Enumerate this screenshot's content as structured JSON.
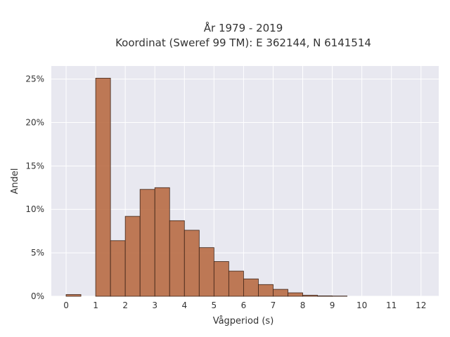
{
  "chart_data": {
    "type": "bar",
    "title_line1": "År 1979 - 2019",
    "title_line2": "Koordinat (Sweref 99 TM): E 362144, N 6141514",
    "xlabel": "Vågperiod (s)",
    "ylabel": "Andel",
    "xlim": [
      -0.5,
      12.6
    ],
    "ylim": [
      0,
      26.5
    ],
    "x_ticks": [
      "0",
      "1",
      "2",
      "3",
      "4",
      "5",
      "6",
      "7",
      "8",
      "9",
      "10",
      "11",
      "12"
    ],
    "y_ticks": [
      "0%",
      "5%",
      "10%",
      "15%",
      "20%",
      "25%"
    ],
    "y_tick_values": [
      0,
      5,
      10,
      15,
      20,
      25
    ],
    "bin_width": 0.5,
    "bins": [
      {
        "start": 0.0,
        "value": 0.2
      },
      {
        "start": 1.0,
        "value": 25.1
      },
      {
        "start": 1.5,
        "value": 6.4
      },
      {
        "start": 2.0,
        "value": 9.2
      },
      {
        "start": 2.5,
        "value": 12.3
      },
      {
        "start": 3.0,
        "value": 12.5
      },
      {
        "start": 3.5,
        "value": 8.7
      },
      {
        "start": 4.0,
        "value": 7.6
      },
      {
        "start": 4.5,
        "value": 5.6
      },
      {
        "start": 5.0,
        "value": 4.0
      },
      {
        "start": 5.5,
        "value": 2.9
      },
      {
        "start": 6.0,
        "value": 2.0
      },
      {
        "start": 6.5,
        "value": 1.35
      },
      {
        "start": 7.0,
        "value": 0.8
      },
      {
        "start": 7.5,
        "value": 0.4
      },
      {
        "start": 8.0,
        "value": 0.12
      },
      {
        "start": 8.5,
        "value": 0.05
      },
      {
        "start": 9.0,
        "value": 0.03
      }
    ],
    "grid": true,
    "legend": "none",
    "bar_color": "#b5643a",
    "background_color": "#e8e8f0"
  }
}
